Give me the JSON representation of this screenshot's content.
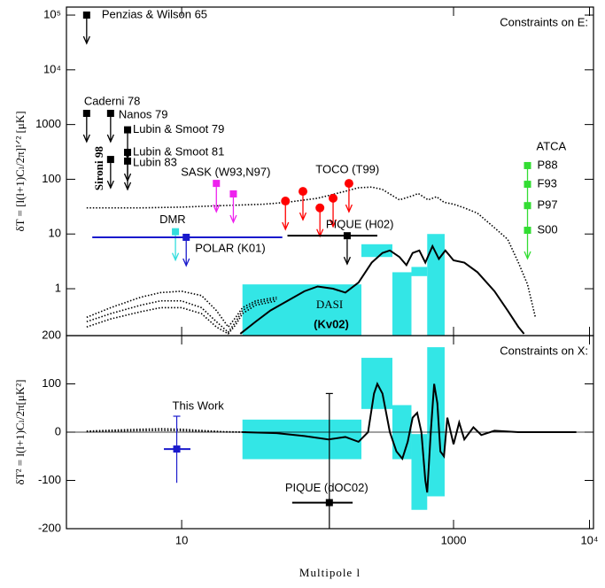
{
  "chart_data": [
    {
      "type": "scatter",
      "annotation": "Constraints on E:",
      "ylabel": "δT = [l(l+1)Cₗ/2π]¹ᐟ² [μK]",
      "box_label": "DASI",
      "box_sublabel": "(Kv02)",
      "xlog": true,
      "ylog": true,
      "xlim": [
        1.42,
        10700
      ],
      "ylim": [
        0.139,
        140000
      ],
      "yticks": [
        {
          "value": 100000,
          "label": "10⁵"
        },
        {
          "value": 10000,
          "label": "10⁴"
        },
        1000,
        100,
        10,
        1
      ],
      "box_color": "#33e6e6",
      "boxes": [
        {
          "x": [
            28,
            210
          ],
          "y": [
            null,
            1.2
          ]
        },
        {
          "x": [
            210,
            355
          ],
          "y": [
            3.8,
            6.5
          ]
        },
        {
          "x": [
            355,
            490
          ],
          "y": [
            null,
            2.0
          ]
        },
        {
          "x": [
            490,
            640
          ],
          "y": [
            1.7,
            2.5
          ]
        },
        {
          "x": [
            640,
            860
          ],
          "y": [
            null,
            10
          ]
        }
      ],
      "curves": [
        {
          "style": "dotted",
          "color": "#000000",
          "x": [
            2,
            3,
            5,
            10,
            20,
            40,
            60,
            100,
            150,
            200,
            250,
            300,
            400,
            500,
            550,
            650,
            750,
            850,
            1000,
            1200,
            1500,
            2000,
            2500,
            3000,
            3500,
            4000
          ],
          "y": [
            30,
            30,
            30,
            31,
            33,
            35,
            38,
            45,
            58,
            70,
            72,
            65,
            42,
            50,
            55,
            42,
            48,
            38,
            35,
            30,
            24,
            13,
            8,
            3,
            1.2,
            0.3
          ]
        },
        {
          "style": "solid",
          "color": "#000000",
          "x": [
            27,
            35,
            45,
            60,
            80,
            100,
            130,
            160,
            200,
            250,
            300,
            340,
            400,
            450,
            500,
            560,
            620,
            700,
            780,
            870,
            1000,
            1200,
            1500,
            2000,
            2500,
            3000,
            3300
          ],
          "y": [
            0.15,
            0.25,
            0.4,
            0.6,
            0.9,
            1.1,
            1.0,
            0.85,
            1.3,
            3,
            4.5,
            5,
            3.8,
            2.7,
            4.5,
            5,
            3,
            6,
            3.5,
            5,
            3.3,
            3,
            2,
            0.9,
            0.4,
            0.2,
            0.15
          ]
        },
        {
          "style": "dotted",
          "color": "#000000",
          "x": [
            2,
            3,
            5,
            7,
            10,
            14,
            18,
            22,
            25,
            28,
            35,
            50
          ],
          "y": [
            0.3,
            0.45,
            0.7,
            0.85,
            0.9,
            0.75,
            0.4,
            0.2,
            0.3,
            0.45,
            0.6,
            0.7
          ]
        },
        {
          "style": "dotted",
          "color": "#000000",
          "x": [
            2,
            3,
            5,
            7,
            10,
            14,
            18,
            22,
            25,
            28,
            35,
            50
          ],
          "y": [
            0.25,
            0.35,
            0.5,
            0.6,
            0.6,
            0.45,
            0.25,
            0.16,
            0.25,
            0.4,
            0.55,
            0.65
          ]
        },
        {
          "style": "dotted",
          "color": "#000000",
          "x": [
            2,
            3,
            5,
            7,
            10,
            14,
            18,
            22,
            25,
            28,
            35,
            50
          ],
          "y": [
            0.2,
            0.28,
            0.38,
            0.45,
            0.45,
            0.35,
            0.2,
            0.15,
            0.22,
            0.35,
            0.5,
            0.6
          ]
        }
      ],
      "series": [
        {
          "name": "Penzias & Wilson 65",
          "color": "#000000",
          "marker": "square",
          "upper_limit": true,
          "x": [
            2
          ],
          "y": [
            100000
          ]
        },
        {
          "name": "Caderni 78",
          "color": "#000000",
          "marker": "square",
          "upper_limit": true,
          "x": [
            2
          ],
          "y": [
            1600
          ]
        },
        {
          "name": "Nanos 79",
          "color": "#000000",
          "marker": "square",
          "upper_limit": true,
          "x": [
            3
          ],
          "y": [
            1600
          ]
        },
        {
          "name": "Lubin & Smoot 79",
          "color": "#000000",
          "marker": "square",
          "upper_limit": true,
          "x": [
            4
          ],
          "y": [
            800
          ]
        },
        {
          "name": "Lubin & Smoot 81",
          "color": "#000000",
          "marker": "square",
          "upper_limit": true,
          "x": [
            4
          ],
          "y": [
            310
          ]
        },
        {
          "name": "Lubin 83",
          "color": "#000000",
          "marker": "square",
          "upper_limit": true,
          "x": [
            4
          ],
          "y": [
            215
          ]
        },
        {
          "name": "Sironi 98",
          "color": "#000000",
          "marker": "square",
          "upper_limit": true,
          "x": [
            3
          ],
          "y": [
            230
          ]
        },
        {
          "name": "SASK (W93,N97)",
          "color": "#ee22ee",
          "marker": "square",
          "upper_limit": true,
          "x": [
            18,
            24
          ],
          "y": [
            84,
            54
          ]
        },
        {
          "name": "TOCO (T99)",
          "color": "#ff0000",
          "marker": "circle",
          "upper_limit": true,
          "x": [
            58,
            78,
            104,
            130,
            170
          ],
          "y": [
            40,
            60,
            30,
            45,
            84
          ]
        },
        {
          "name": "DMR",
          "color": "#33dddd",
          "marker": "square",
          "upper_limit": true,
          "x": [
            9
          ],
          "y": [
            11
          ]
        },
        {
          "name": "POLAR (K01)",
          "color": "#1a1acc",
          "marker": "square",
          "upper_limit": true,
          "x": [
            10.8
          ],
          "y": [
            8.7
          ],
          "xrange": [
            2.2,
            55
          ]
        },
        {
          "name": "PIQUE (H02)",
          "color": "#000000",
          "marker": "square",
          "upper_limit": true,
          "x": [
            165
          ],
          "y": [
            9.3
          ],
          "xrange": [
            60,
            275
          ]
        },
        {
          "name": "ATCA",
          "color": "#33dd33",
          "marker": "square",
          "upper_limit": true,
          "joined": true,
          "x": [
            3500,
            3500,
            3500,
            3500
          ],
          "y": [
            178,
            81,
            33,
            11.7
          ],
          "point_labels": [
            "P88",
            "F93",
            "P97",
            "S00"
          ]
        }
      ]
    },
    {
      "type": "scatter",
      "annotation": "Constraints on X:",
      "ylabel": "δT² = l(l+1)Cₗ/2π[μK²]",
      "xlabel": "Multipole l",
      "xlog": true,
      "ylog": false,
      "xlim": [
        1.42,
        10700
      ],
      "ylim": [
        -200,
        200
      ],
      "xticks": [
        10,
        1000,
        {
          "value": 10000,
          "label": "10⁴"
        }
      ],
      "yticks": [
        200,
        100,
        0,
        -100,
        -200
      ],
      "box_color": "#33e6e6",
      "boxes": [
        {
          "x": [
            28,
            210
          ],
          "y": [
            -56,
            26
          ]
        },
        {
          "x": [
            210,
            355
          ],
          "y": [
            48,
            154
          ]
        },
        {
          "x": [
            355,
            490
          ],
          "y": [
            -56,
            56
          ]
        },
        {
          "x": [
            490,
            640
          ],
          "y": [
            -161,
            -4
          ]
        },
        {
          "x": [
            640,
            860
          ],
          "y": [
            -133,
            176
          ]
        }
      ],
      "curves": [
        {
          "style": "solid",
          "color": "#000000",
          "x": [
            28,
            50,
            80,
            120,
            160,
            200,
            235,
            260,
            275,
            300,
            340,
            380,
            420,
            460,
            500,
            540,
            580,
            620,
            640,
            680,
            720,
            760,
            800,
            850,
            900,
            1000,
            1100,
            1200,
            1400,
            1600,
            2000,
            3000,
            8000
          ],
          "y": [
            0,
            -2,
            -8,
            -15,
            -10,
            -20,
            0,
            80,
            100,
            80,
            0,
            -40,
            -55,
            -20,
            30,
            40,
            0,
            -100,
            -125,
            0,
            100,
            60,
            -40,
            -50,
            30,
            -25,
            20,
            -15,
            10,
            -6,
            3,
            0,
            0
          ]
        },
        {
          "style": "dotted",
          "color": "#000000",
          "x": [
            2,
            3,
            5,
            7,
            10,
            15,
            20,
            25,
            30
          ],
          "y": [
            2,
            4,
            6,
            7,
            6,
            3,
            1,
            0.5,
            0
          ]
        },
        {
          "style": "dotted",
          "color": "#000000",
          "x": [
            2,
            3,
            5,
            7,
            10,
            15,
            20,
            25,
            30
          ],
          "y": [
            1,
            2,
            3,
            3.5,
            3,
            1.5,
            0.5,
            0,
            0
          ]
        }
      ],
      "series": [
        {
          "name": "This Work",
          "color": "#1a1acc",
          "marker": "square",
          "x": [
            9.2
          ],
          "y": [
            -35
          ],
          "ylow": [
            -105
          ],
          "yhigh": [
            33
          ],
          "xrange": [
            7.4,
            11.6
          ]
        },
        {
          "name": "PIQUE (dOC02)",
          "color": "#000000",
          "marker": "square",
          "x": [
            122
          ],
          "y": [
            -146
          ],
          "ylow": [
            -350
          ],
          "yhigh": [
            80
          ],
          "xrange": [
            65,
            181
          ]
        }
      ]
    }
  ]
}
